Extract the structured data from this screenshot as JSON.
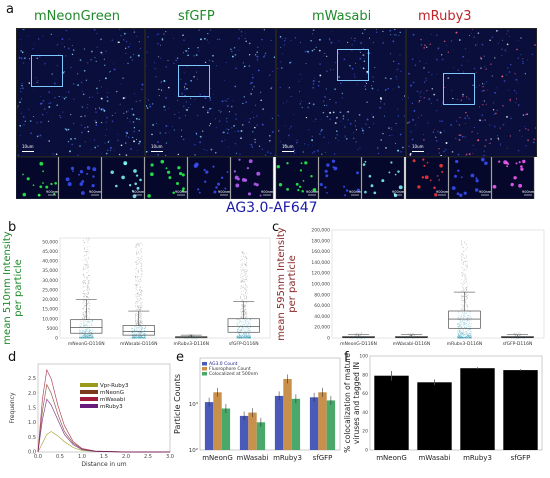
{
  "panel_a": {
    "label": "a",
    "channels": [
      {
        "name": "mNeonGreen",
        "color": "#1f8a2a",
        "scale": "10um",
        "tint": "#7fd6ff"
      },
      {
        "name": "sfGFP",
        "color": "#1f8a2a",
        "scale": "10um",
        "tint": "#7fd6ff"
      },
      {
        "name": "mWasabi",
        "color": "#1f8a2a",
        "scale": "10um",
        "tint": "#7fd6ff"
      },
      {
        "name": "mRuby3",
        "color": "#c0232a",
        "scale": "10um",
        "tint": "#ff5a8a"
      }
    ],
    "inset_scale": "900nm"
  },
  "title": "AG3.0-AF647",
  "title_color": "#1a1aa8",
  "panel_b": {
    "label": "b",
    "ylabel": "mean 510nm Intensity per particle",
    "ylabel_color": "#1f8a2a",
    "yticks": [
      "0",
      "5000",
      "10,000",
      "15,000",
      "20,000",
      "25,000",
      "30,000",
      "35,000",
      "40,000",
      "45,000",
      "50,000"
    ],
    "categories": [
      "mNeonG-D116N",
      "mWasabi-D116N",
      "mRuby3-D116N",
      "sfGFP-D116N"
    ]
  },
  "panel_c": {
    "label": "c",
    "ylabel": "mean 595nm Intensity per particle",
    "ylabel_color": "#8a2a2a",
    "yticks": [
      "0",
      "20,000",
      "40,000",
      "60,000",
      "80,000",
      "100,000",
      "120,000",
      "140,000",
      "160,000",
      "180,000",
      "200,000"
    ],
    "categories": [
      "mNeonG-D116N",
      "mWasabi-D116N",
      "mRuby3-D116N",
      "sfGFP-D116N"
    ]
  },
  "panel_d": {
    "label": "d",
    "xlabel": "Distance in um",
    "ylabel": "Frequency",
    "xticks": [
      "0.0",
      "0.5",
      "1.0",
      "1.5",
      "2.0",
      "2.5",
      "3.0"
    ],
    "yticks": [
      "0.0",
      "0.5",
      "1.0",
      "1.5",
      "2.0",
      "2.5"
    ],
    "legend": [
      {
        "name": "Vpr-Ruby3",
        "color": "#9a9a1a"
      },
      {
        "name": "mNeonG",
        "color": "#7a3a1a"
      },
      {
        "name": "mWasabi",
        "color": "#a01a3a"
      },
      {
        "name": "mRuby3",
        "color": "#6a1a7a"
      }
    ]
  },
  "panel_e": {
    "label": "e",
    "ylabel": "Particle Counts",
    "yticks": [
      "10²",
      "10³"
    ],
    "legend": [
      {
        "name": "AG3.0 Count",
        "color": "#4a5ab8"
      },
      {
        "name": "Fluorophore Count",
        "color": "#c8904a"
      },
      {
        "name": "Colocalized at 500nm",
        "color": "#4aa86a"
      }
    ]
  },
  "panel_f": {
    "label": "f",
    "ylabel": "% colocalization of mature viruses and tagged IN",
    "yticks": [
      "0",
      "20",
      "40",
      "60",
      "80",
      "100"
    ]
  },
  "chart_data": [
    {
      "type": "box",
      "panel": "b",
      "categories": [
        "mNeonG-D116N",
        "mWasabi-D116N",
        "mRuby3-D116N",
        "sfGFP-D116N"
      ],
      "ylim": [
        0,
        52000
      ],
      "boxes": [
        {
          "q1": 2500,
          "median": 5500,
          "q3": 9500,
          "whisker_high": 20000,
          "max": 52000
        },
        {
          "q1": 1500,
          "median": 3500,
          "q3": 6500,
          "whisker_high": 14000,
          "max": 50000
        },
        {
          "q1": 100,
          "median": 300,
          "q3": 700,
          "whisker_high": 1500,
          "max": 2000
        },
        {
          "q1": 3000,
          "median": 6000,
          "q3": 10000,
          "whisker_high": 19000,
          "max": 45000
        }
      ]
    },
    {
      "type": "box",
      "panel": "c",
      "categories": [
        "mNeonG-D116N",
        "mWasabi-D116N",
        "mRuby3-D116N",
        "sfGFP-D116N"
      ],
      "ylim": [
        0,
        200000
      ],
      "boxes": [
        {
          "q1": 500,
          "median": 1500,
          "q3": 3000,
          "whisker_high": 6000,
          "max": 10000
        },
        {
          "q1": 500,
          "median": 1500,
          "q3": 3000,
          "whisker_high": 6000,
          "max": 10000
        },
        {
          "q1": 18000,
          "median": 35000,
          "q3": 50000,
          "whisker_high": 85000,
          "max": 180000
        },
        {
          "q1": 500,
          "median": 1500,
          "q3": 3000,
          "whisker_high": 6000,
          "max": 10000
        }
      ]
    },
    {
      "type": "line",
      "panel": "d",
      "xlim": [
        0,
        3
      ],
      "ylim": [
        0,
        3
      ],
      "series": [
        {
          "name": "Vpr-Ruby3",
          "x": [
            0,
            0.1,
            0.2,
            0.3,
            0.45,
            0.6,
            0.8,
            1.0,
            1.3,
            2.0,
            3.0
          ],
          "y": [
            0,
            0.3,
            0.6,
            0.7,
            0.55,
            0.35,
            0.15,
            0.05,
            0.02,
            0,
            0
          ]
        },
        {
          "name": "mNeonG",
          "x": [
            0,
            0.1,
            0.2,
            0.3,
            0.45,
            0.6,
            0.8,
            1.0,
            1.3,
            2.0,
            3.0
          ],
          "y": [
            0,
            1.4,
            2.3,
            2.0,
            1.3,
            0.7,
            0.3,
            0.1,
            0.03,
            0,
            0
          ]
        },
        {
          "name": "mWasabi",
          "x": [
            0,
            0.1,
            0.2,
            0.3,
            0.45,
            0.6,
            0.8,
            1.0,
            1.3,
            2.0,
            3.0
          ],
          "y": [
            0,
            1.8,
            2.8,
            2.5,
            1.6,
            0.9,
            0.35,
            0.12,
            0.03,
            0,
            0
          ]
        },
        {
          "name": "mRuby3",
          "x": [
            0,
            0.1,
            0.2,
            0.3,
            0.45,
            0.6,
            0.8,
            1.0,
            1.3,
            2.0,
            3.0
          ],
          "y": [
            0,
            1.1,
            1.8,
            1.6,
            1.1,
            0.6,
            0.25,
            0.08,
            0.02,
            0,
            0
          ]
        }
      ]
    },
    {
      "type": "bar",
      "panel": "e",
      "scale": "log",
      "ylim": [
        100,
        10000
      ],
      "categories": [
        "mNeonG",
        "mWasabi",
        "mRuby3",
        "sfGFP"
      ],
      "series": [
        {
          "name": "AG3.0 Count",
          "values": [
            1100,
            550,
            1500,
            1400
          ]
        },
        {
          "name": "Fluorophore Count",
          "values": [
            1800,
            650,
            3500,
            1800
          ]
        },
        {
          "name": "Colocalized at 500nm",
          "values": [
            800,
            400,
            1300,
            1200
          ]
        }
      ]
    },
    {
      "type": "bar",
      "panel": "f",
      "ylim": [
        0,
        100
      ],
      "categories": [
        "mNeonG",
        "mWasabi",
        "mRuby3",
        "sfGFP"
      ],
      "values": [
        79,
        72,
        87,
        85
      ],
      "errors": [
        5,
        3,
        1,
        1
      ]
    }
  ]
}
